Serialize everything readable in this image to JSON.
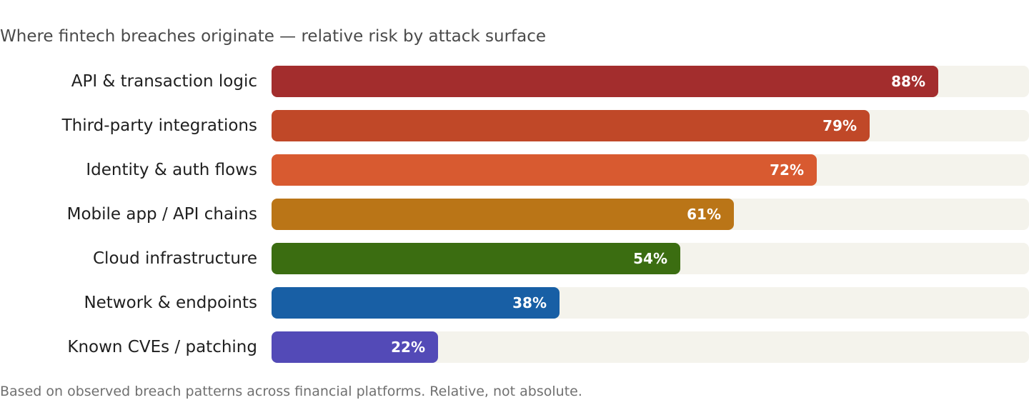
{
  "chart_data": {
    "type": "bar",
    "orientation": "horizontal",
    "title": "Where fintech breaches originate — relative risk by attack surface",
    "categories": [
      "API & transaction logic",
      "Third-party integrations",
      "Identity & auth flows",
      "Mobile app / API chains",
      "Cloud infrastructure",
      "Network & endpoints",
      "Known CVEs / patching"
    ],
    "values": [
      88,
      79,
      72,
      61,
      54,
      38,
      22
    ],
    "value_labels": [
      "88%",
      "79%",
      "72%",
      "61%",
      "54%",
      "38%",
      "22%"
    ],
    "colors": [
      "#a32d2d",
      "#c04828",
      "#d85a30",
      "#ba7517",
      "#3b6d11",
      "#185fa5",
      "#534ab7"
    ],
    "xlim": [
      0,
      100
    ],
    "unit": "%",
    "grid": false,
    "legend": "none",
    "footnote": "Based on observed breach patterns across financial platforms. Relative, not absolute."
  }
}
